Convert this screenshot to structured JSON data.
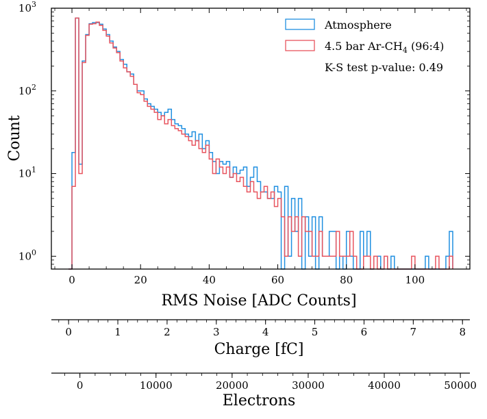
{
  "chart_data": {
    "type": "histogram-step",
    "yscale": "log",
    "xlabel": "RMS Noise [ADC Counts]",
    "ylabel": "Count",
    "xlim": [
      -6,
      116
    ],
    "ylim": [
      0.7,
      1000
    ],
    "x_ticks": [
      "0",
      "20",
      "40",
      "60",
      "80",
      "100"
    ],
    "y_ticks": [
      {
        "base": "10",
        "exp": "0"
      },
      {
        "base": "10",
        "exp": "1"
      },
      {
        "base": "10",
        "exp": "2"
      },
      {
        "base": "10",
        "exp": "3"
      }
    ],
    "bin_start": -1,
    "bin_width": 1,
    "series": [
      {
        "name": "Atmosphere",
        "color": "#1f8fe0",
        "values": [
          0,
          18,
          760,
          13,
          230,
          480,
          650,
          670,
          670,
          640,
          560,
          480,
          400,
          340,
          300,
          240,
          210,
          170,
          160,
          120,
          100,
          100,
          80,
          70,
          65,
          60,
          55,
          50,
          55,
          60,
          45,
          40,
          38,
          35,
          30,
          28,
          32,
          25,
          30,
          20,
          25,
          18,
          14,
          10,
          14,
          13,
          14,
          9,
          12,
          10,
          11,
          12,
          7,
          9,
          12,
          8,
          6,
          6,
          5,
          5,
          7,
          6,
          0,
          7,
          1,
          5,
          2,
          5,
          0,
          3,
          1,
          3,
          0,
          3,
          1,
          1,
          2,
          2,
          0,
          1,
          0,
          2,
          1,
          0,
          0,
          2,
          1,
          2,
          0,
          1,
          1,
          0,
          1,
          0,
          1,
          0,
          0,
          0,
          0,
          0,
          0,
          0,
          0,
          0,
          1,
          0,
          0,
          0,
          0,
          0,
          1,
          2
        ],
        "label": "Atmosphere"
      },
      {
        "name": "4.5 bar Ar-CH4 (96:4)",
        "color": "#e8545e",
        "values": [
          0,
          7,
          760,
          10,
          220,
          470,
          640,
          650,
          680,
          620,
          540,
          460,
          380,
          330,
          290,
          230,
          190,
          170,
          150,
          120,
          95,
          90,
          75,
          65,
          60,
          55,
          45,
          50,
          40,
          45,
          38,
          35,
          33,
          30,
          28,
          25,
          22,
          25,
          20,
          18,
          22,
          15,
          10,
          15,
          12,
          10,
          12,
          9,
          10,
          8,
          9,
          7,
          6,
          8,
          6,
          5,
          6,
          7,
          5,
          6,
          4,
          5,
          3,
          1,
          3,
          2,
          3,
          1,
          3,
          2,
          2,
          1,
          1,
          2,
          1,
          1,
          1,
          1,
          2,
          1,
          1,
          1,
          2,
          1,
          0,
          0,
          1,
          1,
          0,
          1,
          0,
          0,
          1,
          0,
          0,
          0,
          0,
          0,
          0,
          0,
          1,
          0,
          0,
          0,
          0,
          0,
          0,
          1,
          0,
          0,
          0,
          1
        ],
        "label_main": "4.5 bar Ar-CH",
        "label_sub": "4",
        "label_tail": " (96:4)"
      }
    ],
    "annotation": "K-S test p-value: 0.49",
    "secondary_axes": [
      {
        "label": "Charge [fC]",
        "range": [
          -0.35,
          8.15
        ],
        "ticks": [
          "0",
          "1",
          "2",
          "3",
          "4",
          "5",
          "6",
          "7",
          "8"
        ]
      },
      {
        "label": "Electrons",
        "range": [
          -3750,
          51250
        ],
        "ticks": [
          "0",
          "10000",
          "20000",
          "30000",
          "40000",
          "50000"
        ]
      }
    ]
  }
}
